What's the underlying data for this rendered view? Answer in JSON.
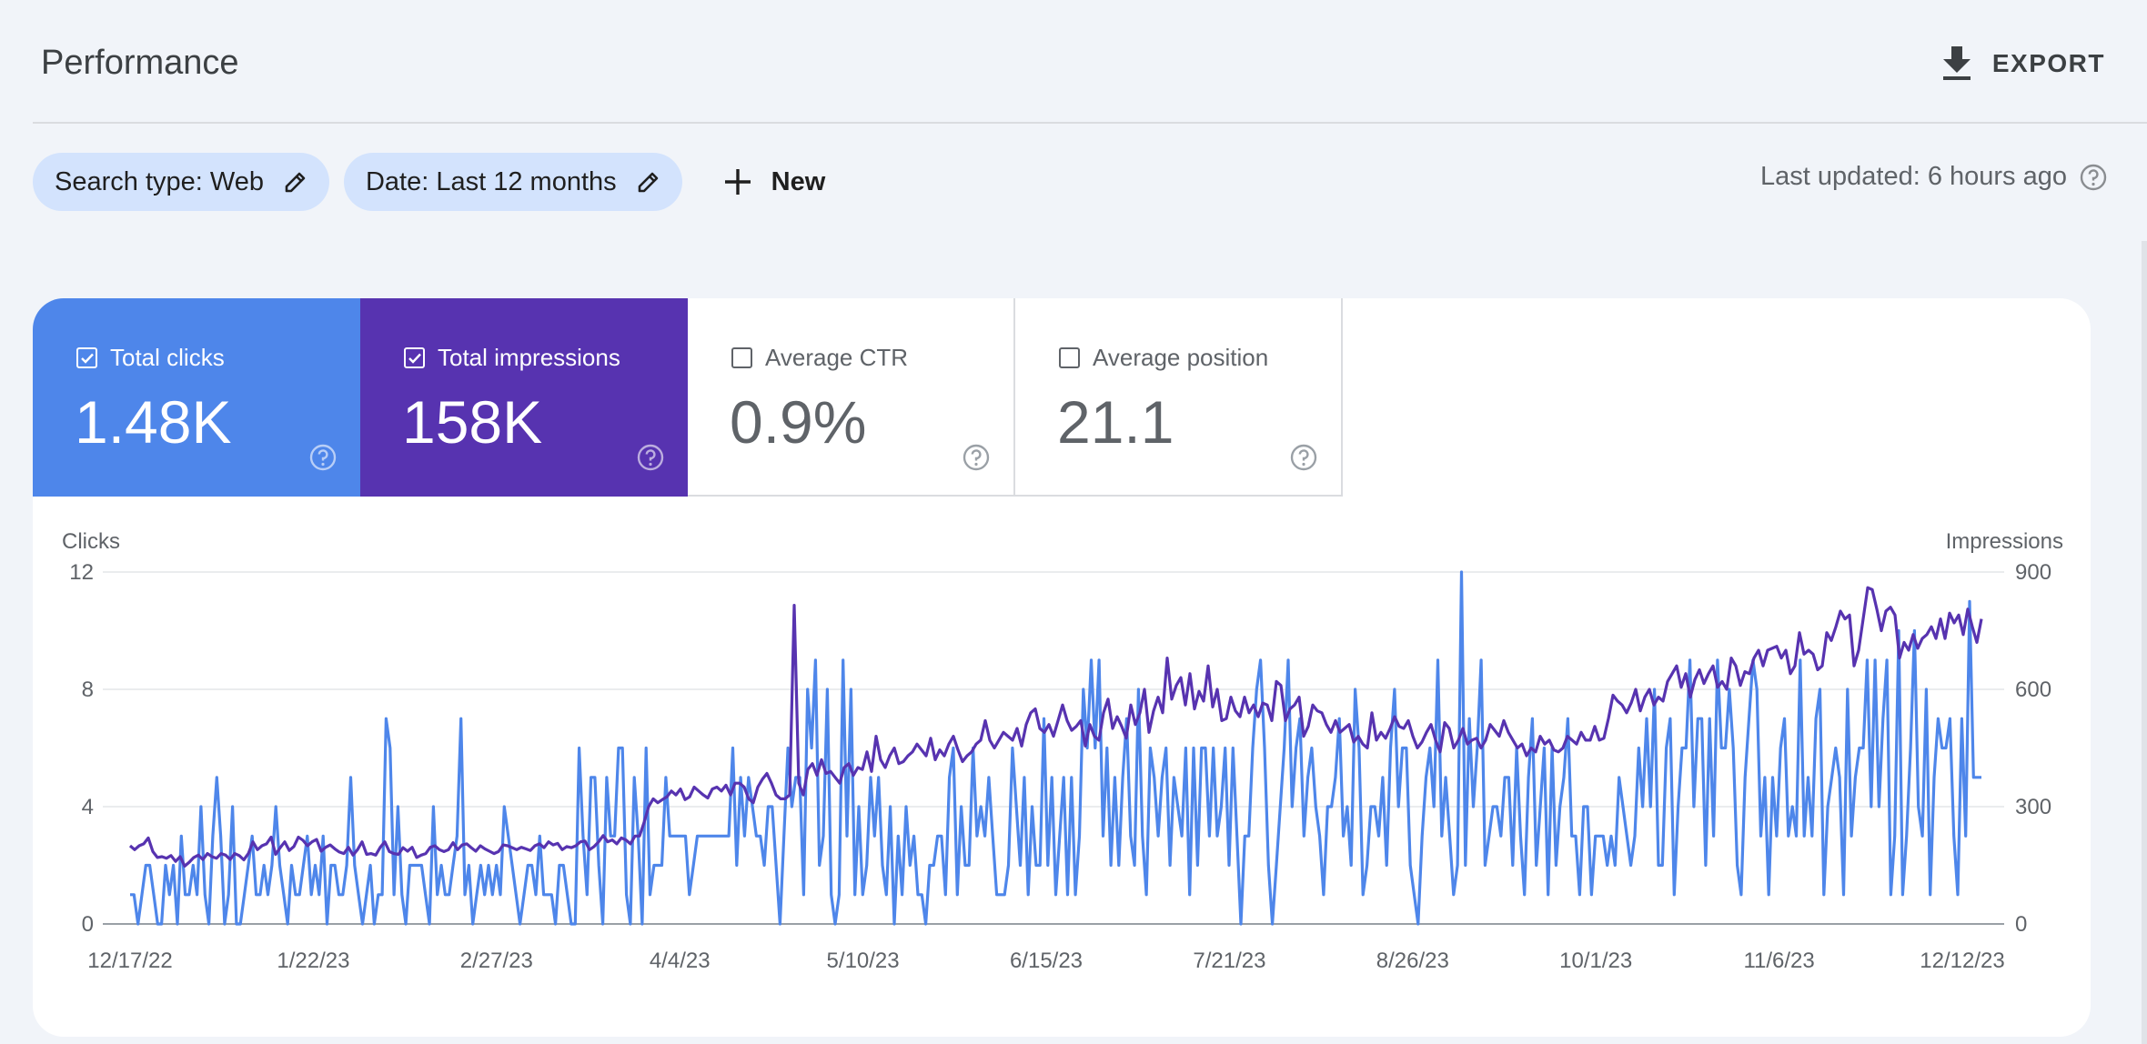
{
  "header": {
    "title": "Performance",
    "export_label": "EXPORT"
  },
  "filters": {
    "search_type": "Search type: Web",
    "date": "Date: Last 12 months",
    "new_label": "New",
    "last_updated": "Last updated: 6 hours ago"
  },
  "metrics": [
    {
      "label": "Total clicks",
      "value": "1.48K",
      "checked": true
    },
    {
      "label": "Total impressions",
      "value": "158K",
      "checked": true
    },
    {
      "label": "Average CTR",
      "value": "0.9%",
      "checked": false
    },
    {
      "label": "Average position",
      "value": "21.1",
      "checked": false
    }
  ],
  "colors": {
    "clicks": "#4e86ea",
    "impressions": "#5733b0",
    "grid": "#e3e5e8",
    "axis_text": "#5f6368"
  },
  "chart_data": {
    "type": "line",
    "x_tick_labels": [
      "12/17/22",
      "1/22/23",
      "2/27/23",
      "4/4/23",
      "5/10/23",
      "6/15/23",
      "7/21/23",
      "8/26/23",
      "10/1/23",
      "11/6/23",
      "12/12/23"
    ],
    "x_range": [
      "12/17/22",
      "12/16/23"
    ],
    "y_left": {
      "label": "Clicks",
      "ticks": [
        0,
        4,
        8,
        12
      ],
      "range": [
        0,
        12
      ]
    },
    "y_right": {
      "label": "Impressions",
      "ticks": [
        0,
        300,
        600,
        900
      ],
      "range": [
        0,
        900
      ]
    },
    "grid": true,
    "legend": "none",
    "series": [
      {
        "name": "Total clicks",
        "axis": "left",
        "values": [
          1,
          1,
          0,
          1,
          2,
          2,
          1,
          0,
          0,
          2,
          1,
          2,
          0,
          3,
          1,
          1,
          2,
          1,
          4,
          1,
          0,
          3,
          5,
          3,
          0,
          1,
          4,
          0,
          0,
          1,
          2,
          3,
          1,
          1,
          2,
          1,
          2,
          4,
          2,
          1,
          0,
          2,
          1,
          1,
          2,
          3,
          1,
          2,
          1,
          3,
          0,
          2,
          2,
          1,
          1,
          2,
          5,
          2,
          1,
          0,
          1,
          2,
          0,
          1,
          1,
          7,
          6,
          1,
          4,
          1,
          0,
          2,
          2,
          2,
          2,
          1,
          0,
          4,
          1,
          2,
          1,
          1,
          2,
          3,
          7,
          1,
          2,
          0,
          1,
          2,
          1,
          2,
          1,
          2,
          1,
          4,
          3,
          2,
          1,
          0,
          1,
          2,
          2,
          1,
          3,
          1,
          1,
          1,
          0,
          2,
          2,
          1,
          0,
          0,
          6,
          3,
          1,
          5,
          5,
          2,
          0,
          5,
          3,
          3,
          6,
          6,
          1,
          0,
          5,
          3,
          0,
          6,
          1,
          2,
          2,
          2,
          5,
          3,
          3,
          3,
          3,
          3,
          1,
          2,
          3,
          3,
          3,
          3,
          3,
          3,
          3,
          3,
          3,
          6,
          2,
          5,
          3,
          5,
          4,
          3,
          3,
          2,
          4,
          4,
          2,
          0,
          3,
          6,
          4,
          5,
          5,
          1,
          8,
          6,
          9,
          2,
          3,
          8,
          1,
          0,
          1,
          9,
          3,
          8,
          1,
          4,
          1,
          2,
          5,
          3,
          5,
          2,
          1,
          4,
          0,
          3,
          1,
          4,
          2,
          3,
          1,
          1,
          0,
          2,
          2,
          3,
          3,
          1,
          5,
          6,
          1,
          4,
          2,
          2,
          6,
          3,
          4,
          3,
          5,
          3,
          1,
          1,
          1,
          2,
          6,
          4,
          2,
          5,
          1,
          4,
          2,
          2,
          7,
          2,
          5,
          1,
          3,
          5,
          1,
          5,
          1,
          3,
          8,
          6,
          9,
          6,
          9,
          3,
          6,
          2,
          5,
          2,
          5,
          7,
          3,
          2,
          8,
          3,
          1,
          6,
          5,
          3,
          5,
          6,
          2,
          5,
          4,
          3,
          6,
          1,
          6,
          2,
          6,
          6,
          3,
          6,
          3,
          4,
          6,
          2,
          6,
          3,
          0,
          3,
          3,
          6,
          8,
          9,
          6,
          2,
          0,
          2,
          4,
          6,
          9,
          4,
          6,
          7,
          3,
          5,
          6,
          4,
          3,
          1,
          4,
          4,
          5,
          7,
          3,
          4,
          2,
          8,
          6,
          1,
          2,
          4,
          4,
          3,
          5,
          2,
          6,
          8,
          4,
          6,
          6,
          2,
          1,
          0,
          3,
          5,
          6,
          4,
          9,
          3,
          5,
          3,
          1,
          2,
          12,
          2,
          7,
          4,
          6,
          9,
          2,
          3,
          4,
          4,
          3,
          5,
          5,
          2,
          6,
          3,
          1,
          5,
          7,
          2,
          4,
          6,
          1,
          6,
          2,
          4,
          5,
          7,
          3,
          3,
          1,
          4,
          4,
          1,
          3,
          3,
          3,
          2,
          3,
          2,
          5,
          4,
          3,
          2,
          3,
          6,
          4,
          7,
          4,
          8,
          2,
          2,
          6,
          7,
          1,
          4,
          6,
          6,
          9,
          4,
          7,
          7,
          2,
          7,
          3,
          9,
          6,
          6,
          8,
          6,
          2,
          1,
          5,
          7,
          9,
          8,
          3,
          5,
          1,
          5,
          3,
          6,
          7,
          3,
          4,
          3,
          9,
          3,
          5,
          3,
          7,
          8,
          1,
          4,
          5,
          6,
          5,
          1,
          8,
          3,
          5,
          6,
          6,
          9,
          4,
          9,
          4,
          7,
          9,
          1,
          3,
          10,
          1,
          3,
          6,
          10,
          4,
          3,
          8,
          1,
          5,
          7,
          6,
          6,
          7,
          3,
          1,
          7,
          3,
          11,
          5,
          5,
          5
        ],
        "color": "#4e86ea"
      },
      {
        "name": "Total impressions",
        "axis": "right",
        "values": [
          200,
          190,
          200,
          205,
          220,
          185,
          170,
          172,
          168,
          175,
          160,
          172,
          148,
          158,
          170,
          176,
          165,
          180,
          172,
          168,
          180,
          176,
          165,
          180,
          175,
          164,
          180,
          210,
          190,
          200,
          205,
          222,
          178,
          195,
          210,
          188,
          198,
          222,
          214,
          200,
          210,
          216,
          186,
          196,
          202,
          192,
          184,
          180,
          196,
          176,
          190,
          210,
          178,
          180,
          176,
          196,
          210,
          185,
          180,
          178,
          195,
          186,
          196,
          170,
          176,
          180,
          196,
          200,
          190,
          185,
          190,
          208,
          190,
          202,
          205,
          195,
          186,
          200,
          192,
          186,
          180,
          185,
          202,
          200,
          195,
          190,
          196,
          192,
          188,
          200,
          205,
          195,
          210,
          202,
          206,
          190,
          198,
          195,
          200,
          210,
          212,
          190,
          198,
          210,
          226,
          210,
          215,
          205,
          220,
          215,
          205,
          225,
          225,
          260,
          300,
          320,
          310,
          318,
          325,
          340,
          330,
          345,
          318,
          325,
          350,
          340,
          330,
          322,
          345,
          350,
          340,
          355,
          330,
          360,
          360,
          350,
          320,
          310,
          350,
          370,
          385,
          360,
          330,
          320,
          320,
          330,
          815,
          360,
          330,
          395,
          410,
          380,
          420,
          385,
          390,
          375,
          360,
          400,
          410,
          380,
          400,
          395,
          440,
          390,
          480,
          420,
          400,
          430,
          450,
          410,
          415,
          430,
          440,
          460,
          445,
          430,
          475,
          420,
          445,
          430,
          460,
          480,
          445,
          415,
          430,
          440,
          460,
          470,
          520,
          470,
          450,
          470,
          490,
          480,
          470,
          500,
          455,
          510,
          540,
          550,
          500,
          490,
          510,
          480,
          520,
          560,
          520,
          495,
          505,
          520,
          455,
          510,
          480,
          470,
          540,
          575,
          500,
          530,
          505,
          475,
          560,
          510,
          540,
          600,
          490,
          545,
          580,
          540,
          680,
          575,
          610,
          630,
          560,
          640,
          550,
          595,
          570,
          660,
          555,
          600,
          520,
          525,
          580,
          545,
          530,
          580,
          540,
          560,
          530,
          565,
          560,
          520,
          620,
          610,
          520,
          550,
          560,
          580,
          480,
          505,
          560,
          545,
          540,
          510,
          490,
          520,
          490,
          500,
          510,
          465,
          480,
          460,
          450,
          540,
          470,
          490,
          475,
          500,
          530,
          505,
          500,
          520,
          480,
          450,
          465,
          490,
          510,
          470,
          440,
          515,
          500,
          450,
          470,
          500,
          460,
          470,
          475,
          450,
          470,
          510,
          495,
          480,
          520,
          490,
          470,
          450,
          460,
          430,
          450,
          440,
          480,
          460,
          470,
          445,
          440,
          450,
          480,
          470,
          460,
          490,
          470,
          470,
          505,
          470,
          475,
          525,
          585,
          570,
          560,
          540,
          565,
          600,
          545,
          580,
          600,
          560,
          580,
          570,
          620,
          640,
          660,
          605,
          640,
          580,
          625,
          650,
          615,
          640,
          660,
          605,
          620,
          600,
          680,
          660,
          610,
          645,
          640,
          680,
          700,
          660,
          700,
          705,
          710,
          680,
          700,
          640,
          660,
          745,
          690,
          700,
          690,
          650,
          660,
          745,
          725,
          760,
          800,
          780,
          790,
          660,
          700,
          780,
          860,
          855,
          805,
          750,
          800,
          810,
          790,
          680,
          720,
          700,
          740,
          705,
          730,
          740,
          760,
          730,
          780,
          730,
          795,
          770,
          790,
          740,
          805,
          760,
          720,
          780
        ],
        "color": "#5733b0"
      }
    ]
  }
}
